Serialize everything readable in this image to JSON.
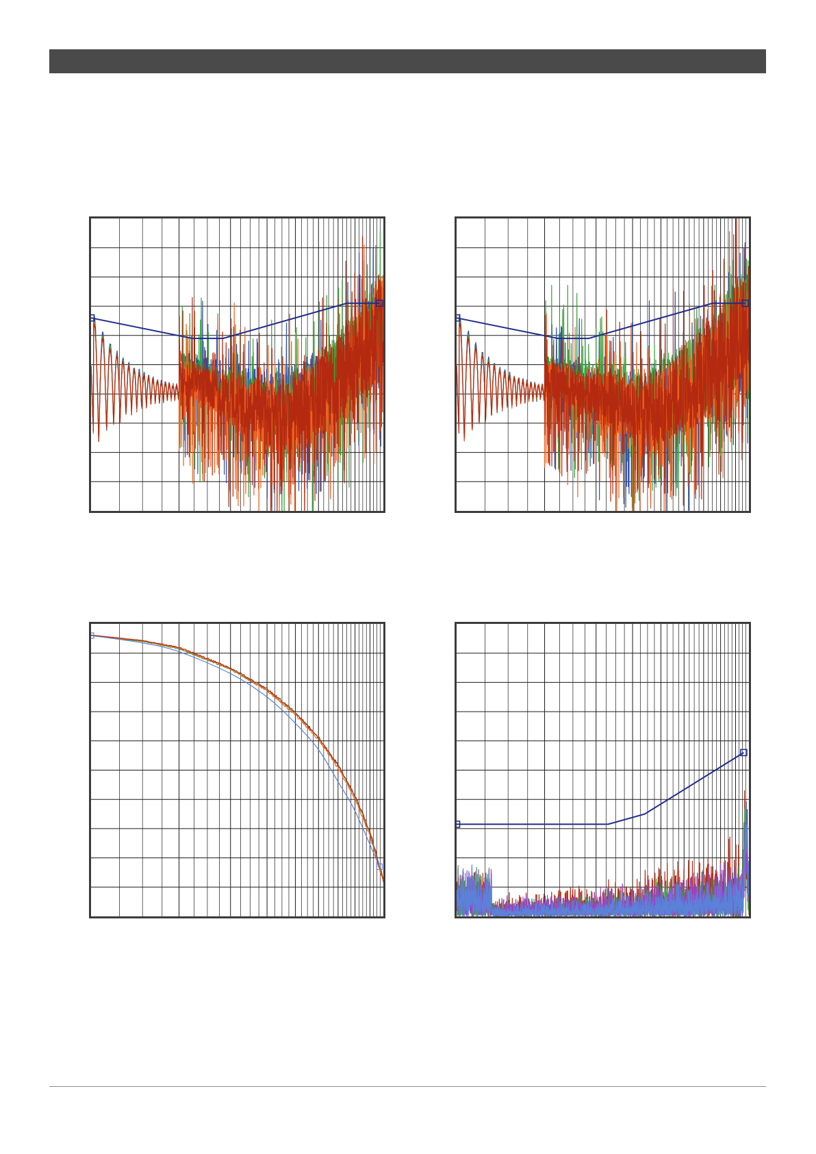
{
  "page": {
    "header_text": "",
    "footer_text": ""
  },
  "colors": {
    "frame": "#3c3c3c",
    "grid": "#1a1a1a",
    "limit": "#1f2d8c",
    "blue": "#2d4fb0",
    "green": "#3aa23a",
    "red": "#b42a10",
    "orange": "#f2601c",
    "purple": "#9a45c8",
    "light_blue": "#5a82d8"
  },
  "chart_data": [
    {
      "id": "top-left",
      "type": "line",
      "x_scale": "log",
      "xlim": [
        1,
        10
      ],
      "ylim": [
        0,
        10
      ],
      "grid": true,
      "title": "",
      "xlabel": "",
      "ylabel": "",
      "limit_line": {
        "x": [
          1.0,
          2.22,
          2.83,
          7.5,
          9.7
        ],
        "y": [
          6.6,
          5.9,
          5.9,
          7.1,
          7.1
        ],
        "markers_at_ends": true
      },
      "series": [
        {
          "color": "blue",
          "seed": 11,
          "ring_amp": 2.9,
          "ring_base": 5.0,
          "ring_end_x": 2.0,
          "noise": 0.45,
          "floor_start": 5.0,
          "floor_dip": 3.6,
          "floor_end": 5.0,
          "spikes": 0.05
        },
        {
          "color": "green",
          "seed": 23,
          "ring_amp": 2.7,
          "ring_base": 5.0,
          "ring_end_x": 2.0,
          "noise": 0.55,
          "floor_start": 4.7,
          "floor_dip": 3.3,
          "floor_end": 5.2,
          "spikes": 0.07
        },
        {
          "color": "orange",
          "seed": 37,
          "ring_amp": 2.6,
          "ring_base": 5.0,
          "ring_end_x": 2.0,
          "noise": 0.6,
          "floor_start": 4.6,
          "floor_dip": 3.0,
          "floor_end": 5.1,
          "spikes": 0.06
        },
        {
          "color": "red",
          "seed": 51,
          "ring_amp": 2.6,
          "ring_base": 5.0,
          "ring_end_x": 2.0,
          "noise": 0.55,
          "floor_start": 4.6,
          "floor_dip": 3.2,
          "floor_end": 5.4,
          "spikes": 0.06
        }
      ]
    },
    {
      "id": "top-right",
      "type": "line",
      "x_scale": "log",
      "xlim": [
        1,
        10
      ],
      "ylim": [
        0,
        10
      ],
      "grid": true,
      "title": "",
      "xlabel": "",
      "ylabel": "",
      "limit_line": {
        "x": [
          1.0,
          2.22,
          2.83,
          7.5,
          9.7
        ],
        "y": [
          6.6,
          5.9,
          5.9,
          7.1,
          7.1
        ],
        "markers_at_ends": true
      },
      "series": [
        {
          "color": "blue",
          "seed": 61,
          "ring_amp": 2.9,
          "ring_base": 5.0,
          "ring_end_x": 2.0,
          "noise": 0.55,
          "floor_start": 4.9,
          "floor_dip": 3.4,
          "floor_end": 5.3,
          "spikes": 0.06
        },
        {
          "color": "green",
          "seed": 73,
          "ring_amp": 2.7,
          "ring_base": 5.0,
          "ring_end_x": 2.0,
          "noise": 0.6,
          "floor_start": 4.8,
          "floor_dip": 3.6,
          "floor_end": 5.6,
          "spikes": 0.07
        },
        {
          "color": "orange",
          "seed": 89,
          "ring_amp": 2.6,
          "ring_base": 5.0,
          "ring_end_x": 2.0,
          "noise": 0.6,
          "floor_start": 4.5,
          "floor_dip": 3.2,
          "floor_end": 5.2,
          "spikes": 0.05
        },
        {
          "color": "red",
          "seed": 97,
          "ring_amp": 2.6,
          "ring_base": 5.0,
          "ring_end_x": 2.0,
          "noise": 0.55,
          "floor_start": 4.6,
          "floor_dip": 3.4,
          "floor_end": 5.6,
          "spikes": 0.06
        }
      ]
    },
    {
      "id": "bottom-left",
      "type": "line",
      "x_scale": "log",
      "xlim": [
        1,
        10
      ],
      "ylim": [
        0,
        10
      ],
      "grid": true,
      "title": "",
      "xlabel": "",
      "ylabel": "",
      "reference_curve": {
        "color": "light_blue",
        "x": [
          1.0,
          1.5,
          2.0,
          3.0,
          4.0,
          5.0,
          6.0,
          7.0,
          8.0,
          9.7
        ],
        "y": [
          9.6,
          9.35,
          9.05,
          8.3,
          7.5,
          6.6,
          5.7,
          4.6,
          3.6,
          1.7
        ],
        "markers_at_ends": true
      },
      "series": [
        {
          "color": "green",
          "x": [
            1.0,
            1.5,
            2.0,
            3.0,
            4.0,
            5.0,
            6.0,
            7.0,
            8.0,
            9.0,
            10.0
          ],
          "y": [
            9.6,
            9.4,
            9.15,
            8.45,
            7.75,
            6.95,
            6.1,
            5.15,
            4.1,
            2.85,
            1.2
          ]
        },
        {
          "color": "orange",
          "x": [
            1.0,
            1.5,
            2.0,
            3.0,
            4.0,
            5.0,
            6.0,
            7.0,
            8.0,
            9.0,
            10.0
          ],
          "y": [
            9.6,
            9.42,
            9.17,
            8.47,
            7.72,
            6.9,
            6.05,
            5.08,
            4.0,
            2.75,
            1.15
          ]
        },
        {
          "color": "red",
          "x": [
            1.0,
            1.5,
            2.0,
            3.0,
            4.0,
            5.0,
            6.0,
            7.0,
            8.0,
            9.0,
            10.0
          ],
          "y": [
            9.62,
            9.43,
            9.2,
            8.5,
            7.78,
            6.98,
            6.12,
            5.18,
            4.12,
            2.9,
            1.25
          ]
        }
      ]
    },
    {
      "id": "bottom-right",
      "type": "line",
      "x_scale": "log",
      "xlim": [
        1,
        10
      ],
      "ylim": [
        0,
        10
      ],
      "grid": true,
      "title": "",
      "xlabel": "",
      "ylabel": "",
      "limit_line": {
        "x": [
          1.0,
          3.3,
          4.4,
          9.6
        ],
        "y": [
          3.15,
          3.15,
          3.5,
          5.6
        ],
        "markers_at_ends": true
      },
      "series": [
        {
          "color": "red",
          "seed": 131,
          "noise_floor": 0.5,
          "noise_end": 2.0,
          "noise": 0.7,
          "spike_at": 9.7,
          "spike_height": 3.2
        },
        {
          "color": "green",
          "seed": 151,
          "noise_floor": 0.4,
          "noise_end": 1.4,
          "noise": 0.6,
          "spike_at": 9.7,
          "spike_height": 2.8
        },
        {
          "color": "purple",
          "seed": 173,
          "noise_floor": 0.45,
          "noise_end": 1.5,
          "noise": 0.6,
          "spike_at": 9.8,
          "spike_height": 2.4
        },
        {
          "color": "light_blue",
          "seed": 191,
          "noise_floor": 0.3,
          "noise_end": 1.2,
          "noise": 0.55,
          "spike_at": 9.8,
          "spike_height": 3.5
        }
      ]
    }
  ]
}
